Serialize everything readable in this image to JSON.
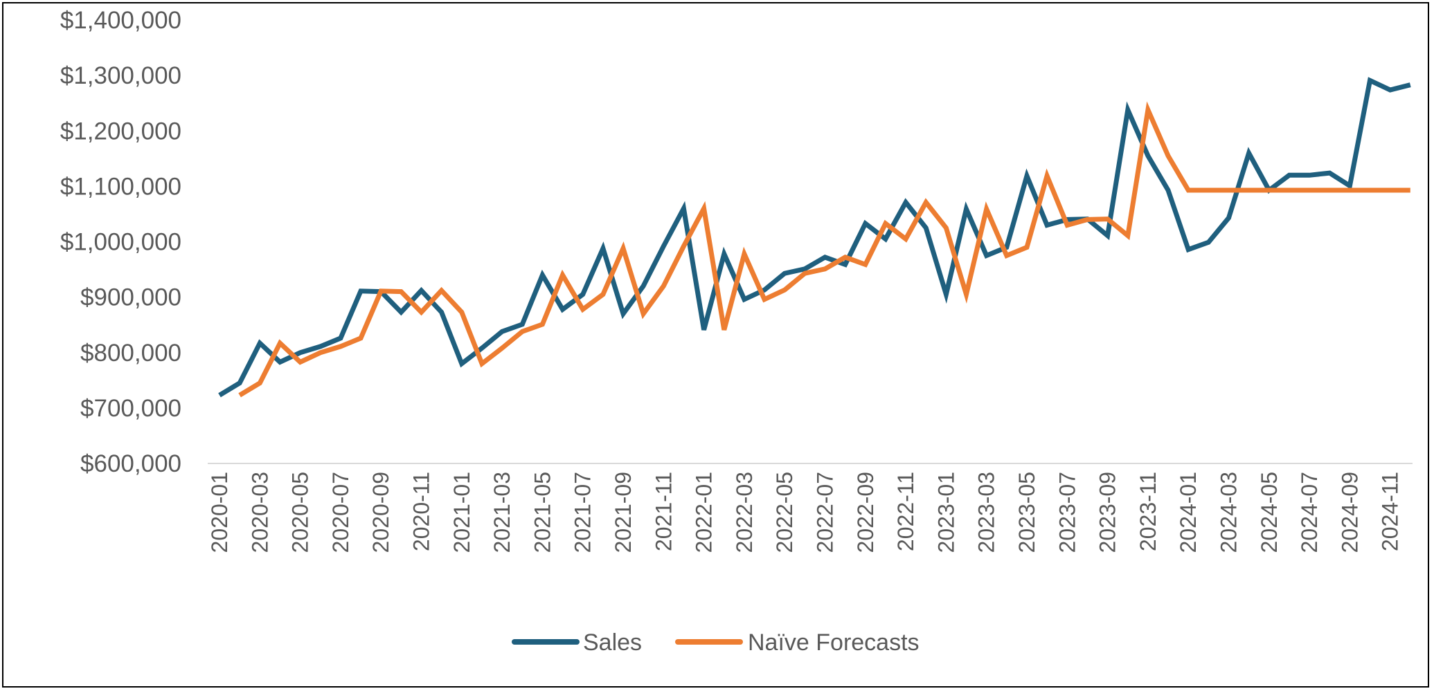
{
  "chart_data": {
    "type": "line",
    "title": "",
    "xlabel": "",
    "ylabel": "",
    "ylim": [
      600000,
      1400000
    ],
    "yticks": [
      600000,
      700000,
      800000,
      900000,
      1000000,
      1100000,
      1200000,
      1300000,
      1400000
    ],
    "ytick_labels": [
      "$600,000",
      "$700,000",
      "$800,000",
      "$900,000",
      "$1,000,000",
      "$1,100,000",
      "$1,200,000",
      "$1,300,000",
      "$1,400,000"
    ],
    "x": [
      "2020-01",
      "2020-02",
      "2020-03",
      "2020-04",
      "2020-05",
      "2020-06",
      "2020-07",
      "2020-08",
      "2020-09",
      "2020-10",
      "2020-11",
      "2020-12",
      "2021-01",
      "2021-02",
      "2021-03",
      "2021-04",
      "2021-05",
      "2021-06",
      "2021-07",
      "2021-08",
      "2021-09",
      "2021-10",
      "2021-11",
      "2021-12",
      "2022-01",
      "2022-02",
      "2022-03",
      "2022-04",
      "2022-05",
      "2022-06",
      "2022-07",
      "2022-08",
      "2022-09",
      "2022-10",
      "2022-11",
      "2022-12",
      "2023-01",
      "2023-02",
      "2023-03",
      "2023-04",
      "2023-05",
      "2023-06",
      "2023-07",
      "2023-08",
      "2023-09",
      "2023-10",
      "2023-11",
      "2023-12",
      "2024-01",
      "2024-02",
      "2024-03",
      "2024-04",
      "2024-05",
      "2024-06",
      "2024-07",
      "2024-08",
      "2024-09",
      "2024-10",
      "2024-11",
      "2024-12"
    ],
    "xtick_labels": [
      "2020-01",
      "2020-03",
      "2020-05",
      "2020-07",
      "2020-09",
      "2020-11",
      "2021-01",
      "2021-03",
      "2021-05",
      "2021-07",
      "2021-09",
      "2021-11",
      "2022-01",
      "2022-03",
      "2022-05",
      "2022-07",
      "2022-09",
      "2022-11",
      "2023-01",
      "2023-03",
      "2023-05",
      "2023-07",
      "2023-09",
      "2023-11",
      "2024-01",
      "2024-03",
      "2024-05",
      "2024-07",
      "2024-09",
      "2024-11"
    ],
    "grid": false,
    "legend_position": "bottom",
    "series": [
      {
        "name": "Sales",
        "color": "#1F5F7E",
        "values": [
          723000,
          745000,
          817000,
          783000,
          800000,
          811000,
          826000,
          911000,
          910000,
          873000,
          912000,
          873000,
          780000,
          808000,
          838000,
          851000,
          940000,
          878000,
          905000,
          988000,
          870000,
          920000,
          992000,
          1060000,
          841000,
          978000,
          896000,
          913000,
          943000,
          951000,
          972000,
          959000,
          1033000,
          1005000,
          1071000,
          1025000,
          905000,
          1059000,
          975000,
          990000,
          1119000,
          1030000,
          1040000,
          1041000,
          1011000,
          1238000,
          1155000,
          1093000,
          986000,
          999000,
          1043000,
          1160000,
          1093000,
          1120000,
          1120000,
          1124000,
          1101000,
          1291000,
          1274000,
          1283000
        ]
      },
      {
        "name": "Naïve Forecasts",
        "color": "#ED7D31",
        "values": [
          null,
          723000,
          745000,
          817000,
          783000,
          800000,
          811000,
          826000,
          911000,
          910000,
          873000,
          912000,
          873000,
          780000,
          808000,
          838000,
          851000,
          940000,
          878000,
          905000,
          988000,
          870000,
          920000,
          992000,
          1060000,
          841000,
          978000,
          896000,
          913000,
          943000,
          951000,
          972000,
          959000,
          1033000,
          1005000,
          1071000,
          1025000,
          905000,
          1059000,
          975000,
          990000,
          1119000,
          1030000,
          1040000,
          1041000,
          1011000,
          1238000,
          1155000,
          1093000,
          1093000,
          1093000,
          1093000,
          1093000,
          1093000,
          1093000,
          1093000,
          1093000,
          1093000,
          1093000,
          1093000
        ]
      }
    ]
  }
}
